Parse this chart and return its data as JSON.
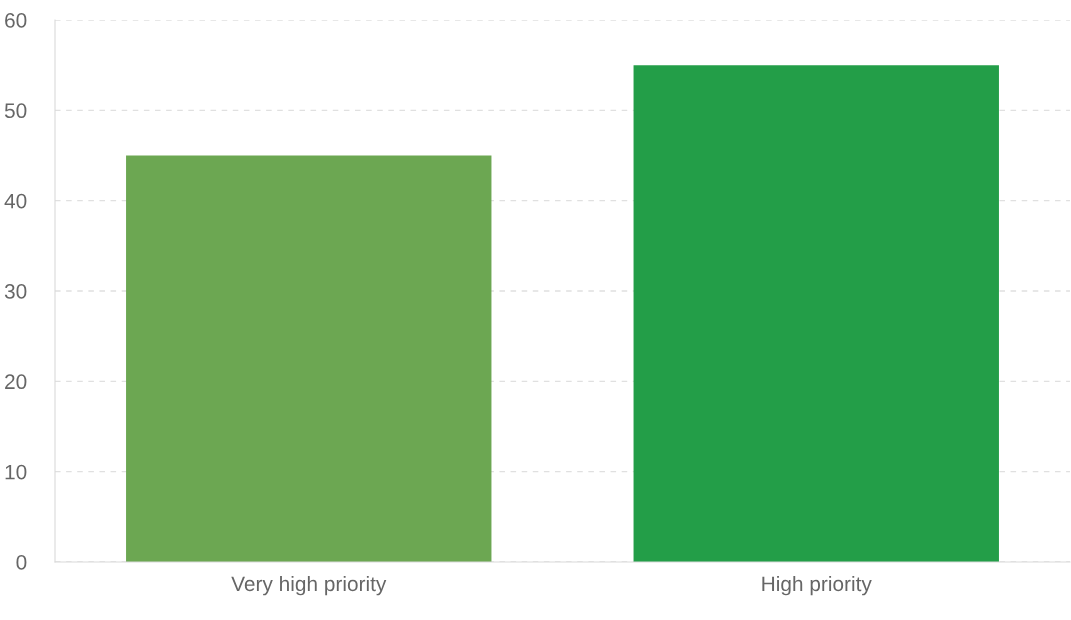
{
  "chart_data": {
    "type": "bar",
    "categories": [
      "Very high priority",
      "High priority"
    ],
    "values": [
      45,
      55
    ],
    "colors": [
      "#6ca752",
      "#239e48"
    ],
    "ylim": [
      0,
      60
    ],
    "yticks": [
      0,
      10,
      20,
      30,
      40,
      50,
      60
    ],
    "grid": "y"
  }
}
